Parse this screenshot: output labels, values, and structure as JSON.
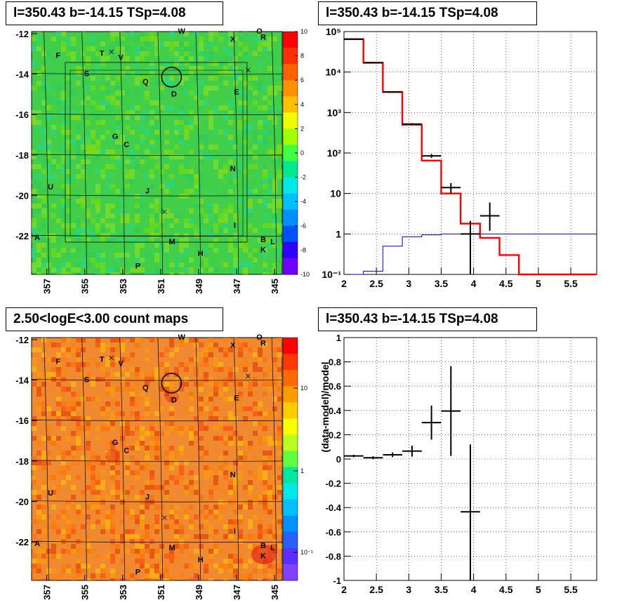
{
  "titles": {
    "map_top": "l=350.43 b=-14.15 TSp=4.08",
    "spectrum": "l=350.43 b=-14.15 TSp=4.08",
    "map_bottom": "2.50<logE<3.00 count maps",
    "residual": "l=350.43 b=-14.15 TSp=4.08"
  },
  "colors": {
    "model_line": "#ff0000",
    "signal_line": "#0000cc",
    "data_marker": "#000000",
    "map_top_base": "#3fcf4a",
    "map_bottom_base": "#f08a30"
  },
  "chart_data": [
    {
      "type": "heatmap",
      "panel": "residual significance map",
      "xticks": [
        "357",
        "355",
        "353",
        "351",
        "349",
        "347",
        "345"
      ],
      "yticks": [
        "-12",
        "-14",
        "-16",
        "-18",
        "-20",
        "-22"
      ],
      "xlim": [
        357.8,
        344.6
      ],
      "ylim": [
        -23.9,
        -11.9
      ],
      "colorbar": {
        "ticks": [
          "10",
          "8",
          "6",
          "4",
          "2",
          "0",
          "-2",
          "-4",
          "-6",
          "-8",
          "-10"
        ],
        "range": [
          -10,
          10
        ]
      },
      "source_labels": [
        {
          "label": "W",
          "l": 349.9,
          "b": -12.0
        },
        {
          "label": "X",
          "l": 347.2,
          "b": -12.4
        },
        {
          "label": "O",
          "l": 345.8,
          "b": -12.0
        },
        {
          "label": "R",
          "l": 345.6,
          "b": -12.3
        },
        {
          "label": "F",
          "l": 356.4,
          "b": -13.2
        },
        {
          "label": "T",
          "l": 354.1,
          "b": -13.1
        },
        {
          "label": "V",
          "l": 353.1,
          "b": -13.3
        },
        {
          "label": "S",
          "l": 354.9,
          "b": -14.1
        },
        {
          "label": "Q",
          "l": 351.8,
          "b": -14.5
        },
        {
          "label": "D",
          "l": 350.3,
          "b": -15.1
        },
        {
          "label": "E",
          "l": 347.0,
          "b": -15.0
        },
        {
          "label": "G",
          "l": 353.4,
          "b": -17.2
        },
        {
          "label": "C",
          "l": 352.8,
          "b": -17.6
        },
        {
          "label": "N",
          "l": 347.2,
          "b": -18.8
        },
        {
          "label": "U",
          "l": 356.8,
          "b": -19.7
        },
        {
          "label": "J",
          "l": 351.7,
          "b": -19.9
        },
        {
          "label": "I",
          "l": 347.1,
          "b": -21.6
        },
        {
          "label": "A",
          "l": 357.5,
          "b": -22.2
        },
        {
          "label": "M",
          "l": 350.4,
          "b": -22.4
        },
        {
          "label": "B",
          "l": 345.6,
          "b": -22.3
        },
        {
          "label": "L",
          "l": 345.1,
          "b": -22.4
        },
        {
          "label": "K",
          "l": 345.6,
          "b": -22.8
        },
        {
          "label": "H",
          "l": 348.9,
          "b": -23.0
        },
        {
          "label": "P",
          "l": 352.2,
          "b": -23.6
        }
      ],
      "crosses": [
        {
          "l": 353.6,
          "b": -12.9
        },
        {
          "l": 346.4,
          "b": -13.8
        },
        {
          "l": 350.8,
          "b": -20.8
        }
      ],
      "circle": {
        "l": 350.43,
        "b": -14.15
      }
    },
    {
      "type": "line",
      "panel": "spectrum",
      "xlim": [
        2,
        5.9
      ],
      "ylim_log": [
        0.1,
        100000
      ],
      "xticks": [
        "2",
        "2.5",
        "3",
        "3.5",
        "4",
        "4.5",
        "5",
        "5.5"
      ],
      "yticks": [
        "10^5",
        "10^4",
        "10^3",
        "10^2",
        "10",
        "1",
        "10^-1"
      ],
      "model_steps": {
        "edges": [
          2.0,
          2.3,
          2.6,
          2.9,
          3.2,
          3.5,
          3.8,
          4.1,
          4.4,
          4.7,
          5.0,
          5.3,
          5.6,
          5.9
        ],
        "values": [
          65000,
          17000,
          3200,
          500,
          65,
          10,
          1.8,
          0.8,
          0.3,
          0.08,
          0.08,
          0.08,
          0.08
        ]
      },
      "signal_steps": {
        "edges": [
          2.0,
          2.3,
          2.6,
          2.9,
          3.2,
          3.5,
          3.8,
          4.1,
          4.4,
          4.7,
          5.0,
          5.3,
          5.6,
          5.9
        ],
        "values": [
          0.05,
          0.12,
          0.5,
          0.85,
          0.95,
          1.0,
          1.0,
          1.0,
          1.0,
          1.0,
          1.0,
          1.0,
          1.0
        ]
      },
      "data_points": [
        {
          "x": 2.15,
          "y": 65000,
          "xerr": 0.15,
          "ylo": 64000,
          "yhi": 66000
        },
        {
          "x": 2.45,
          "y": 17000,
          "xerr": 0.15,
          "ylo": 16800,
          "yhi": 17200
        },
        {
          "x": 2.75,
          "y": 3250,
          "xerr": 0.15,
          "ylo": 3150,
          "yhi": 3350
        },
        {
          "x": 3.05,
          "y": 520,
          "xerr": 0.15,
          "ylo": 495,
          "yhi": 545
        },
        {
          "x": 3.35,
          "y": 85,
          "xerr": 0.15,
          "ylo": 76,
          "yhi": 94
        },
        {
          "x": 3.65,
          "y": 14,
          "xerr": 0.15,
          "ylo": 10,
          "yhi": 18
        },
        {
          "x": 3.95,
          "y": 1,
          "xerr": 0.15,
          "ylo": 0.08,
          "yhi": 2.1
        },
        {
          "x": 4.25,
          "y": 2.8,
          "xerr": 0.15,
          "ylo": 1.2,
          "yhi": 6.0
        }
      ]
    },
    {
      "type": "heatmap",
      "panel": "count map",
      "xticks": [
        "357",
        "355",
        "353",
        "351",
        "349",
        "347",
        "345"
      ],
      "yticks": [
        "-12",
        "-14",
        "-16",
        "-18",
        "-20",
        "-22"
      ],
      "xlim": [
        357.8,
        344.6
      ],
      "ylim": [
        -23.9,
        -11.9
      ],
      "colorbar": {
        "ticks": [
          "10",
          "1",
          "10^-1"
        ],
        "scale": "log"
      }
    },
    {
      "type": "scatter",
      "panel": "residuals",
      "xlim": [
        2,
        5.9
      ],
      "ylim": [
        -1,
        1
      ],
      "ylabel": "(data-model)/model",
      "xticks": [
        "2",
        "2.5",
        "3",
        "3.5",
        "4",
        "4.5",
        "5",
        "5.5"
      ],
      "yticks": [
        "1",
        "0.8",
        "0.6",
        "0.4",
        "0.2",
        "0",
        "-0.2",
        "-0.4",
        "-0.6",
        "-0.8",
        "-1"
      ],
      "points": [
        {
          "x": 2.15,
          "y": 0.025,
          "xerr": 0.15,
          "yerr": 0.01
        },
        {
          "x": 2.45,
          "y": 0.01,
          "xerr": 0.15,
          "yerr": 0.012
        },
        {
          "x": 2.75,
          "y": 0.035,
          "xerr": 0.15,
          "yerr": 0.02
        },
        {
          "x": 3.05,
          "y": 0.065,
          "xerr": 0.15,
          "yerr": 0.045
        },
        {
          "x": 3.35,
          "y": 0.3,
          "xerr": 0.15,
          "yerr": 0.14
        },
        {
          "x": 3.65,
          "y": 0.395,
          "xerr": 0.15,
          "yerr": 0.37
        },
        {
          "x": 3.95,
          "y": -0.435,
          "xerr": 0.15,
          "ylo": -1.0,
          "yhi": 0.12
        }
      ]
    }
  ]
}
